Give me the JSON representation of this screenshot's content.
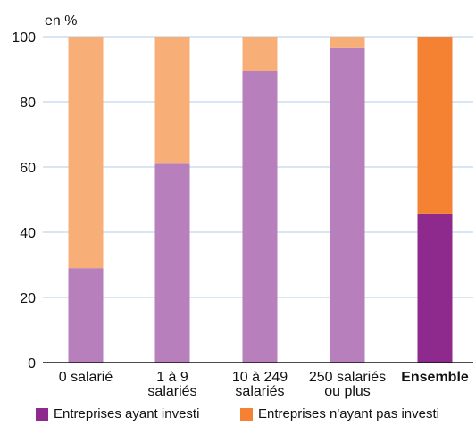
{
  "chart_data": {
    "type": "bar",
    "stacked": true,
    "unit_label": "en %",
    "categories": [
      "0 salarié",
      "1 à 9 salariés",
      "10 à 249 salariés",
      "250 salariés ou plus",
      "Ensemble"
    ],
    "category_lines": [
      [
        "0 salarié"
      ],
      [
        "1 à 9",
        "salariés"
      ],
      [
        "10 à 249",
        "salariés"
      ],
      [
        "250 salariés",
        "ou plus"
      ],
      [
        "Ensemble"
      ]
    ],
    "highlight_category": "Ensemble",
    "series": [
      {
        "name": "Entreprises ayant investi",
        "values": [
          29,
          61,
          89.5,
          96.5,
          45.5
        ]
      },
      {
        "name": "Entreprises n'ayant pas investi",
        "values": [
          71,
          39,
          10.5,
          3.5,
          54.5
        ]
      }
    ],
    "ylim": [
      0,
      100
    ],
    "yticks": [
      0,
      20,
      40,
      60,
      80,
      100
    ],
    "grid": true,
    "legend_position": "bottom",
    "colors": {
      "invested": "#b77fbc",
      "not_invested": "#f8af77",
      "invested_highlight": "#8e2a8e",
      "not_invested_highlight": "#f58232",
      "grid": "#bfd6ea"
    }
  }
}
